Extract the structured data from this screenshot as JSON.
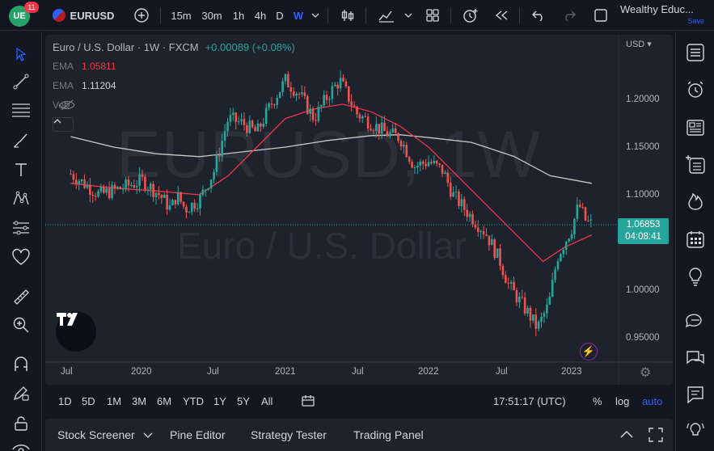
{
  "header": {
    "notification_count": "11",
    "symbol": "EURUSD",
    "timeframes": [
      "15m",
      "30m",
      "1h",
      "4h",
      "D",
      "W"
    ],
    "account_name": "Wealthy Educ...",
    "save_label": "Save"
  },
  "legend": {
    "title": "Euro / U.S. Dollar · 1W · FXCM",
    "change": "+0.00089 (+0.08%)",
    "ema1_label": "EMA",
    "ema1_value": "1.05811",
    "ema2_label": "EMA",
    "ema2_value": "1.11204",
    "vol_label": "Vol"
  },
  "watermark": {
    "symbol": "EURUSD, 1W",
    "name": "Euro / U.S. Dollar"
  },
  "price_scale": {
    "currency": "USD",
    "ticks": [
      "1.20000",
      "1.15000",
      "1.10000",
      "1.00000",
      "0.95000"
    ],
    "last_price": "1.06853",
    "countdown": "04:08:41"
  },
  "time_axis": {
    "ticks": [
      "Jul",
      "2020",
      "Jul",
      "2021",
      "Jul",
      "2022",
      "Jul",
      "2023"
    ]
  },
  "range_bar": {
    "ranges": [
      "1D",
      "5D",
      "1M",
      "3M",
      "6M",
      "YTD",
      "1Y",
      "5Y",
      "All"
    ],
    "clock": "17:51:17 (UTC)",
    "percent_label": "%",
    "log_label": "log",
    "auto_label": "auto"
  },
  "bottom_tabs": [
    "Stock Screener",
    "Pine Editor",
    "Strategy Tester",
    "Trading Panel"
  ],
  "colors": {
    "up": "#26a69a",
    "down": "#ef5350",
    "ema_fast": "#f23645",
    "ema_slow": "#c9c9c9",
    "accent": "#2962ff",
    "background": "#131722",
    "pane": "#1e222d"
  },
  "chart_data": {
    "type": "candlestick",
    "title": "Euro / U.S. Dollar · 1W · FXCM",
    "ylim": [
      0.93,
      1.27
    ],
    "series": [
      {
        "name": "EMA",
        "color": "#f23645",
        "last": 1.05811
      },
      {
        "name": "EMA",
        "color": "#c9c9c9",
        "last": 1.11204
      }
    ],
    "close_path": [
      [
        2019.5,
        1.122
      ],
      [
        2019.7,
        1.1
      ],
      [
        2019.85,
        1.107
      ],
      [
        2020.0,
        1.115
      ],
      [
        2020.12,
        1.1
      ],
      [
        2020.2,
        1.085
      ],
      [
        2020.24,
        1.1
      ],
      [
        2020.3,
        1.085
      ],
      [
        2020.4,
        1.095
      ],
      [
        2020.5,
        1.125
      ],
      [
        2020.6,
        1.18
      ],
      [
        2020.7,
        1.175
      ],
      [
        2020.8,
        1.165
      ],
      [
        2020.9,
        1.195
      ],
      [
        2021.0,
        1.22
      ],
      [
        2021.1,
        1.205
      ],
      [
        2021.2,
        1.18
      ],
      [
        2021.3,
        1.205
      ],
      [
        2021.38,
        1.22
      ],
      [
        2021.5,
        1.185
      ],
      [
        2021.6,
        1.175
      ],
      [
        2021.7,
        1.165
      ],
      [
        2021.8,
        1.16
      ],
      [
        2021.9,
        1.13
      ],
      [
        2022.0,
        1.135
      ],
      [
        2022.1,
        1.125
      ],
      [
        2022.17,
        1.1
      ],
      [
        2022.28,
        1.08
      ],
      [
        2022.4,
        1.06
      ],
      [
        2022.5,
        1.03
      ],
      [
        2022.56,
        1.005
      ],
      [
        2022.7,
        0.975
      ],
      [
        2022.76,
        0.96
      ],
      [
        2022.84,
        0.985
      ],
      [
        2022.9,
        1.035
      ],
      [
        2023.0,
        1.065
      ],
      [
        2023.05,
        1.09
      ],
      [
        2023.1,
        1.072
      ],
      [
        2023.14,
        1.069
      ]
    ],
    "ema_fast": [
      [
        2019.5,
        1.112
      ],
      [
        2019.8,
        1.107
      ],
      [
        2020.1,
        1.104
      ],
      [
        2020.4,
        1.1
      ],
      [
        2020.6,
        1.12
      ],
      [
        2020.8,
        1.15
      ],
      [
        2021.0,
        1.18
      ],
      [
        2021.2,
        1.19
      ],
      [
        2021.4,
        1.195
      ],
      [
        2021.6,
        1.187
      ],
      [
        2021.8,
        1.172
      ],
      [
        2022.0,
        1.15
      ],
      [
        2022.2,
        1.12
      ],
      [
        2022.4,
        1.09
      ],
      [
        2022.6,
        1.06
      ],
      [
        2022.8,
        1.03
      ],
      [
        2022.95,
        1.045
      ],
      [
        2023.14,
        1.058
      ]
    ],
    "ema_slow": [
      [
        2019.5,
        1.161
      ],
      [
        2019.8,
        1.15
      ],
      [
        2020.1,
        1.143
      ],
      [
        2020.4,
        1.14
      ],
      [
        2020.7,
        1.145
      ],
      [
        2021.0,
        1.15
      ],
      [
        2021.3,
        1.157
      ],
      [
        2021.6,
        1.162
      ],
      [
        2021.8,
        1.163
      ],
      [
        2022.0,
        1.16
      ],
      [
        2022.3,
        1.155
      ],
      [
        2022.6,
        1.14
      ],
      [
        2022.85,
        1.12
      ],
      [
        2023.14,
        1.112
      ]
    ]
  }
}
